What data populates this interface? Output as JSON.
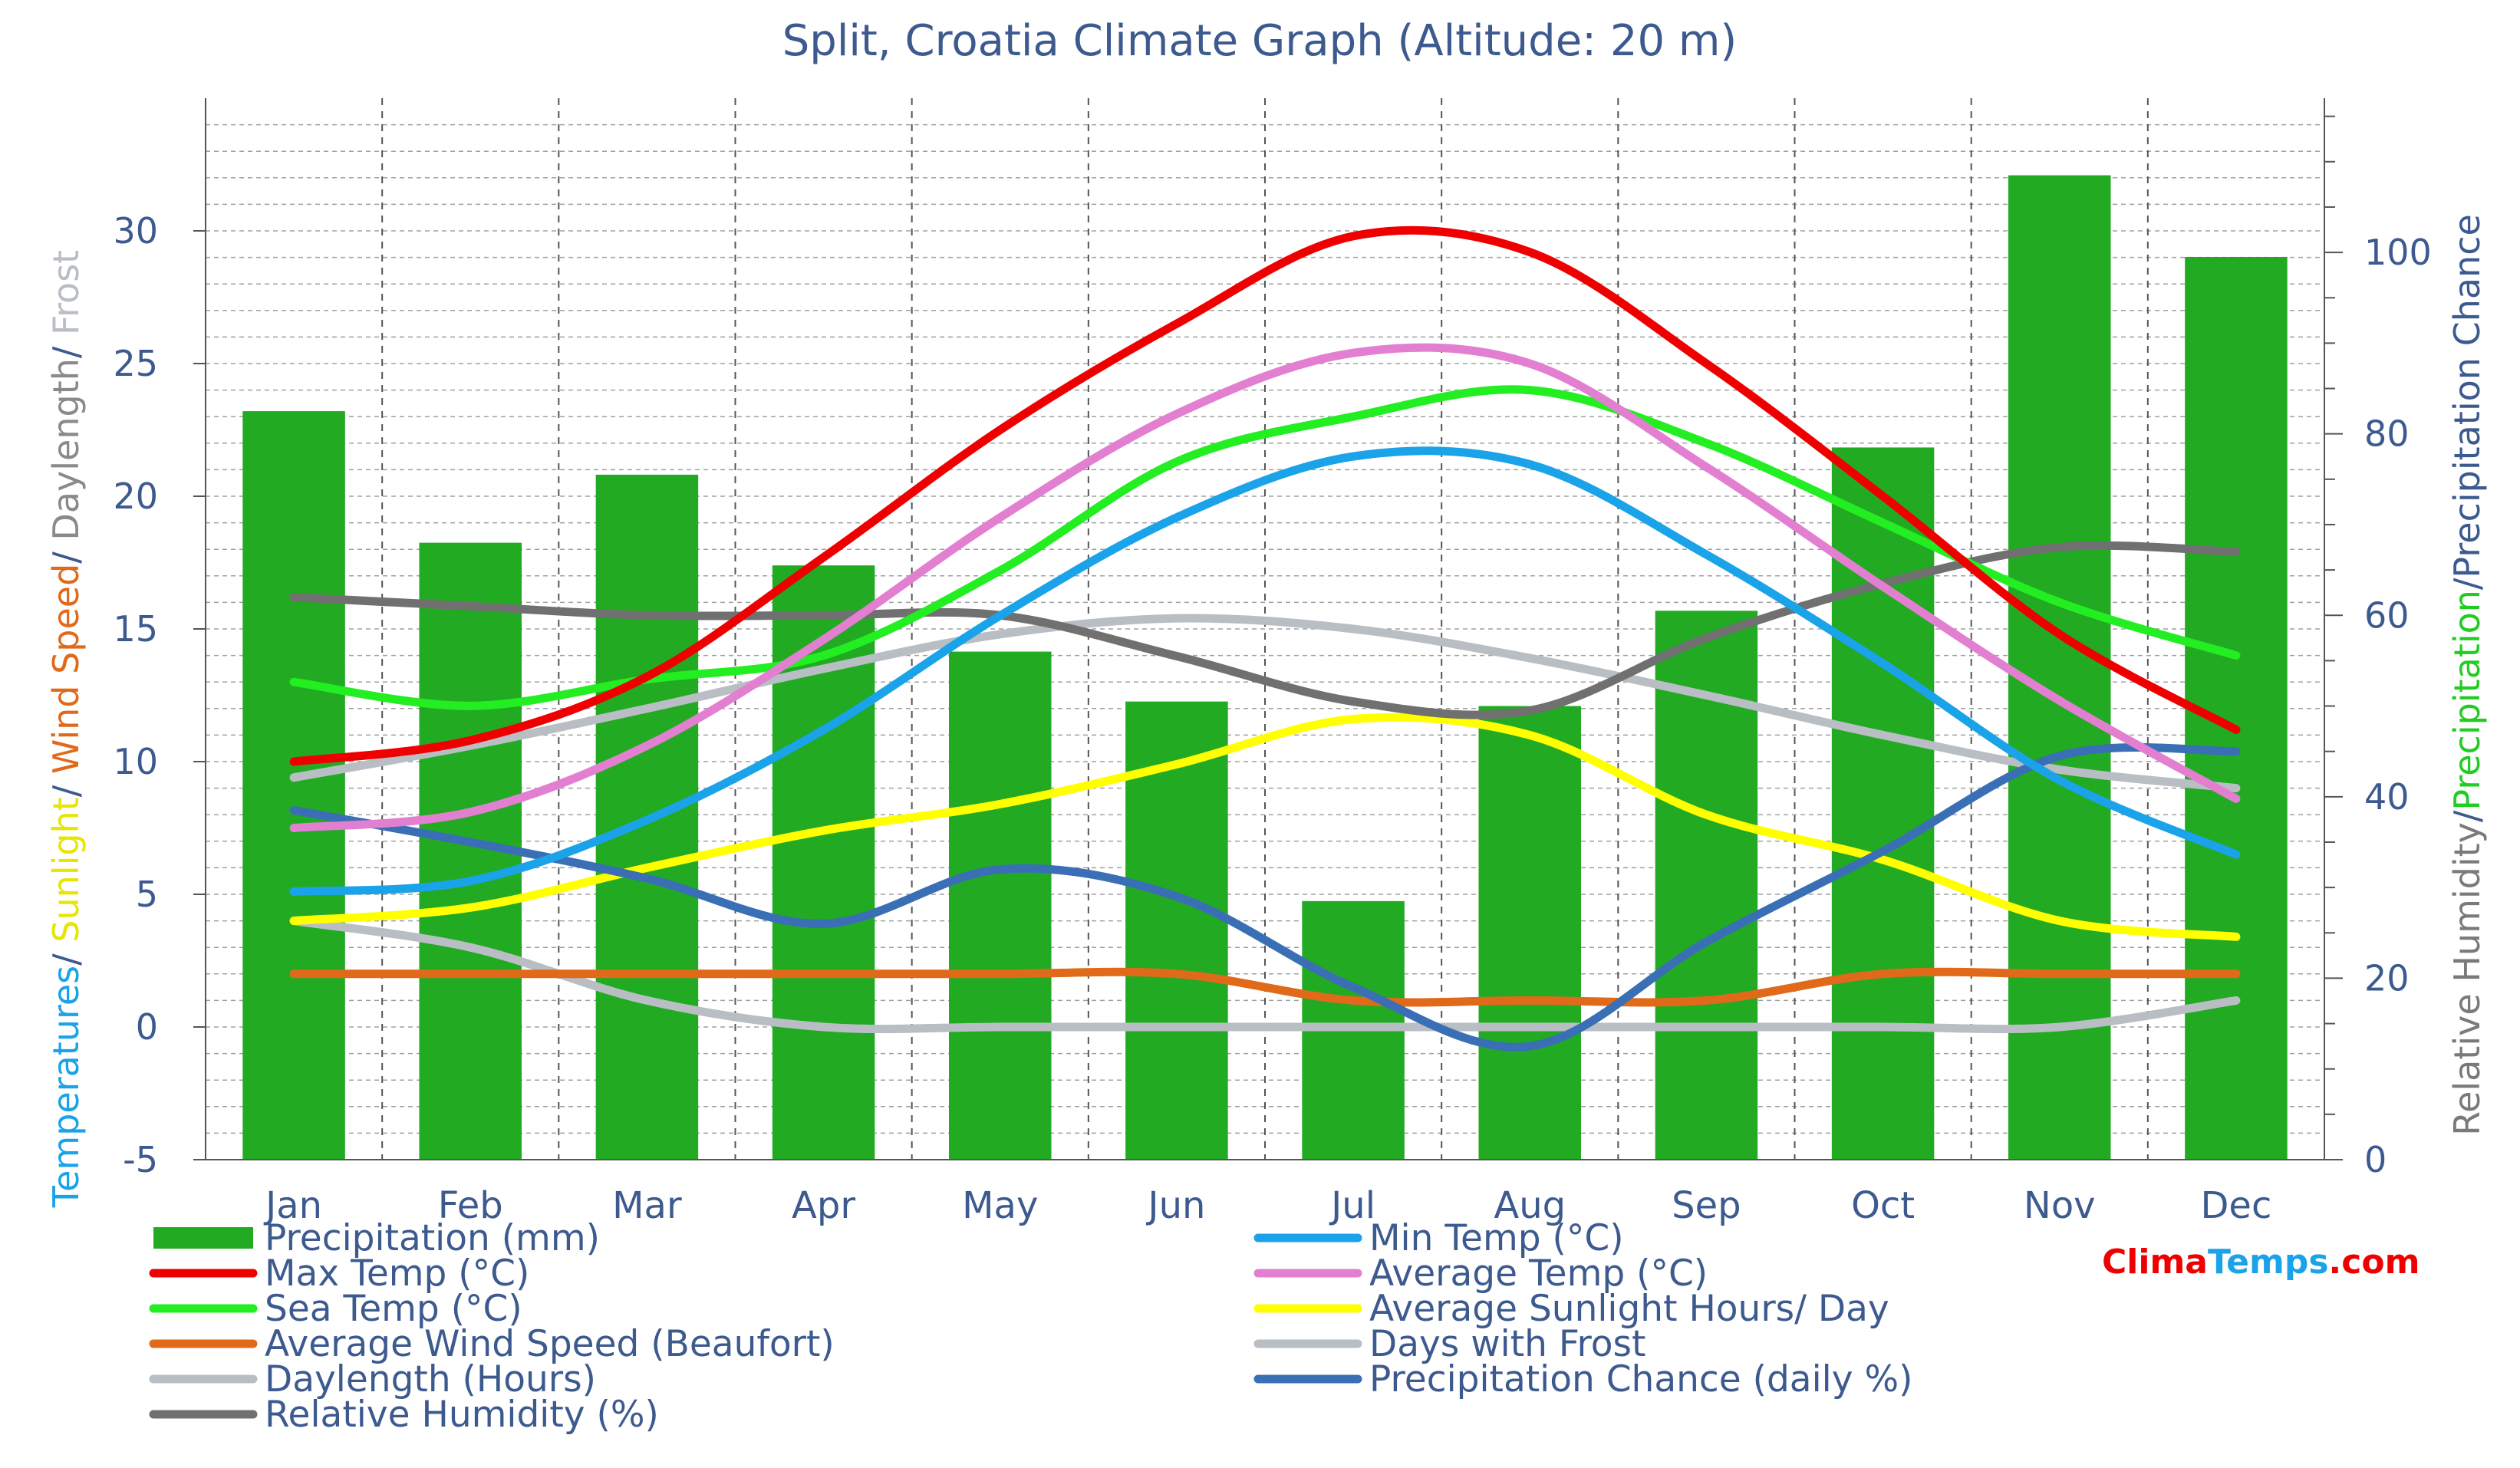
{
  "chart_data": {
    "type": "bar+line",
    "title": "Split, Croatia Climate Graph (Altitude: 20 m)",
    "categories": [
      "Jan",
      "Feb",
      "Mar",
      "Apr",
      "May",
      "Jun",
      "Jul",
      "Aug",
      "Sep",
      "Oct",
      "Nov",
      "Dec"
    ],
    "left_axis": {
      "label_parts": [
        {
          "text": "Temperatures",
          "color": "#1aa3e8"
        },
        {
          "text": "/ ",
          "color": "#3d5a8f"
        },
        {
          "text": "Sunlight",
          "color": "#e6e600"
        },
        {
          "text": "/ ",
          "color": "#3d5a8f"
        },
        {
          "text": "Wind Speed",
          "color": "#e06a1a"
        },
        {
          "text": "/ ",
          "color": "#3d5a8f"
        },
        {
          "text": "Daylength",
          "color": "#8a8a8a"
        },
        {
          "text": "/ ",
          "color": "#3d5a8f"
        },
        {
          "text": "Frost",
          "color": "#b9bec4"
        }
      ],
      "ylim": [
        -5,
        35
      ],
      "ticks": [
        "-5",
        "0",
        "5",
        "10",
        "15",
        "20",
        "25",
        "30"
      ],
      "tick_values": [
        -5,
        0,
        5,
        10,
        15,
        20,
        25,
        30
      ]
    },
    "right_axis": {
      "label_parts": [
        {
          "text": "Relative Humidity",
          "color": "#7a7a7a"
        },
        {
          "text": "/",
          "color": "#3d5a8f"
        },
        {
          "text": "Precipitation",
          "color": "#22cc22"
        },
        {
          "text": "/Precipitation Chance",
          "color": "#3d5a8f"
        }
      ],
      "ylim": [
        0,
        117
      ],
      "ticks": [
        "0",
        "20",
        "40",
        "60",
        "80",
        "100"
      ],
      "tick_values": [
        0,
        20,
        40,
        60,
        80,
        100
      ]
    },
    "bars": {
      "name": "Precipitation (mm)",
      "color": "#22aa22",
      "axis": "right",
      "values": [
        82.5,
        68.0,
        75.5,
        65.5,
        56.0,
        50.5,
        28.5,
        50.0,
        60.5,
        78.5,
        108.5,
        99.5
      ]
    },
    "series": [
      {
        "name": "Max Temp (°C)",
        "color": "#ee0000",
        "axis": "left",
        "values": [
          10,
          10.8,
          13.2,
          17.7,
          22.5,
          26.5,
          29.8,
          29.2,
          25,
          20,
          14.8,
          11.2
        ]
      },
      {
        "name": "Average Temp (°C)",
        "color": "#e27fd1",
        "axis": "left",
        "values": [
          7.5,
          8.1,
          10.6,
          14.6,
          19.2,
          23.1,
          25.4,
          25,
          21.1,
          16.6,
          12.3,
          8.6
        ]
      },
      {
        "name": "Min Temp (°C)",
        "color": "#1aa3e8",
        "axis": "left",
        "values": [
          5.1,
          5.5,
          7.8,
          11.2,
          15.5,
          19.2,
          21.5,
          21.2,
          17.8,
          13.7,
          9.3,
          6.5
        ]
      },
      {
        "name": "Sea Temp (°C)",
        "color": "#22ee22",
        "axis": "left",
        "values": [
          13,
          12.1,
          13.1,
          14,
          17.2,
          21.3,
          23,
          24,
          22,
          19,
          16,
          14
        ]
      },
      {
        "name": "Average Sunlight Hours/ Day",
        "color": "#ffff00",
        "axis": "left",
        "values": [
          4,
          4.5,
          6,
          7.4,
          8.4,
          9.9,
          11.6,
          11,
          8,
          6.3,
          4,
          3.4
        ]
      },
      {
        "name": "Average Wind Speed (Beaufort)",
        "color": "#e06a1a",
        "axis": "left",
        "values": [
          2,
          2,
          2,
          2,
          2,
          2,
          1,
          1,
          1,
          2,
          2,
          2
        ]
      },
      {
        "name": "Days with Frost",
        "color": "#b9bec4",
        "axis": "left",
        "dashed": true,
        "values": [
          4,
          3,
          1,
          0,
          0,
          0,
          0,
          0,
          0,
          0,
          0,
          1
        ]
      },
      {
        "name": "Daylength (Hours)",
        "color": "#b9bec4",
        "axis": "left",
        "values": [
          9.4,
          10.6,
          12,
          13.5,
          14.8,
          15.4,
          15,
          13.9,
          12.5,
          11,
          9.7,
          9
        ]
      },
      {
        "name": "Relative Humidity (%)",
        "color": "#707070",
        "axis": "right",
        "values": [
          62,
          61,
          60,
          60,
          60,
          55.5,
          50.5,
          49.5,
          57.5,
          63.5,
          67.5,
          67
        ]
      },
      {
        "name": "Precipitation Chance (daily %)",
        "color": "#3a6fb5",
        "axis": "right",
        "values": [
          38.5,
          35,
          31,
          26,
          32,
          29,
          19,
          12.5,
          24,
          34,
          44.5,
          45
        ]
      }
    ],
    "legend": {
      "left_column": [
        "Precipitation (mm)",
        "Max Temp (°C)",
        "Sea Temp (°C)",
        "Average Wind Speed (Beaufort)",
        "Daylength (Hours)",
        "Relative Humidity (%)"
      ],
      "right_column": [
        "Min Temp (°C)",
        "Average Temp (°C)",
        "Average Sunlight Hours/ Day",
        "Days with Frost",
        "Precipitation Chance (daily %)"
      ]
    },
    "brand": {
      "part1": "Clima",
      "part2": "Temps",
      "part3": ".com",
      "color1": "#ee0000",
      "color2": "#1aa3e8",
      "color3": "#ee0000"
    }
  }
}
